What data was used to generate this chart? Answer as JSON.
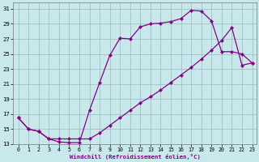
{
  "xlabel": "Windchill (Refroidissement éolien,°C)",
  "bg_color": "#c8e8ec",
  "line_color": "#880088",
  "grid_color": "#99bbbb",
  "xlim_min": -0.5,
  "xlim_max": 23.4,
  "ylim_min": 13,
  "ylim_max": 31.8,
  "xticks": [
    0,
    1,
    2,
    3,
    4,
    5,
    6,
    7,
    8,
    9,
    10,
    11,
    12,
    13,
    14,
    15,
    16,
    17,
    18,
    19,
    20,
    21,
    22,
    23
  ],
  "yticks": [
    13,
    15,
    17,
    19,
    21,
    23,
    25,
    27,
    29,
    31
  ],
  "line1_x": [
    0,
    1,
    2,
    3,
    4,
    5,
    6,
    7,
    8,
    9,
    10,
    11,
    12,
    13,
    14,
    15,
    16,
    17,
    18,
    19,
    20,
    21,
    22,
    23
  ],
  "line1_y": [
    16.5,
    15.0,
    14.7,
    13.7,
    13.3,
    13.2,
    13.2,
    17.5,
    21.2,
    24.8,
    27.1,
    27.0,
    28.6,
    29.0,
    29.1,
    29.3,
    29.7,
    30.8,
    30.7,
    29.4,
    25.3,
    25.3,
    25.0,
    23.8
  ],
  "line2_x": [
    0,
    1,
    2,
    3,
    4,
    5,
    6,
    7,
    8,
    9,
    10,
    11,
    12,
    13,
    14,
    15,
    16,
    17,
    18,
    19,
    20,
    21,
    22,
    23
  ],
  "line2_y": [
    16.5,
    15.0,
    14.7,
    13.7,
    13.7,
    13.7,
    13.7,
    13.7,
    14.5,
    15.5,
    16.5,
    17.5,
    18.5,
    19.3,
    20.2,
    21.2,
    22.2,
    23.2,
    24.3,
    25.5,
    26.8,
    28.5,
    23.5,
    23.8
  ]
}
